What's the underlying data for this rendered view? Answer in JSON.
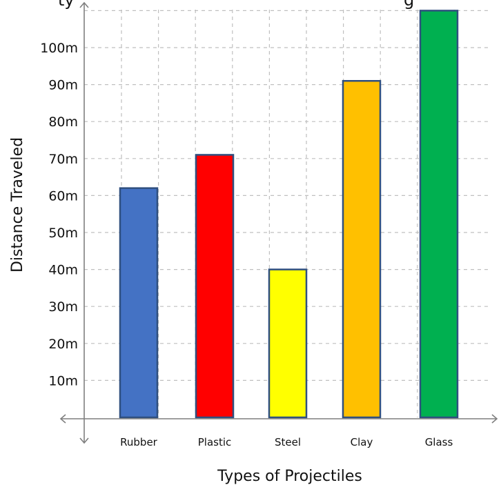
{
  "chart_data": {
    "type": "bar",
    "title": "",
    "top_text_left": "ty",
    "top_text_right": "g",
    "xlabel": "Types of Projectiles",
    "ylabel": "Distance Traveled",
    "categories": [
      "Rubber",
      "Plastic",
      "Steel",
      "Clay",
      "Glass"
    ],
    "values": [
      62,
      71,
      40,
      91,
      110
    ],
    "colors": [
      "#4472c4",
      "#ff0000",
      "#ffff00",
      "#ffc000",
      "#00b050"
    ],
    "bar_border": "#2f4f7f",
    "yticks": [
      10,
      20,
      30,
      40,
      50,
      60,
      70,
      80,
      90,
      100
    ],
    "ytick_labels": [
      "10m",
      "20m",
      "30m",
      "40m",
      "50m",
      "60m",
      "70m",
      "80m",
      "90m",
      "100m"
    ],
    "ylim": [
      0,
      110
    ],
    "grid": true,
    "grid_color": "#bfbfbf",
    "axis_color": "#7f7f7f"
  }
}
